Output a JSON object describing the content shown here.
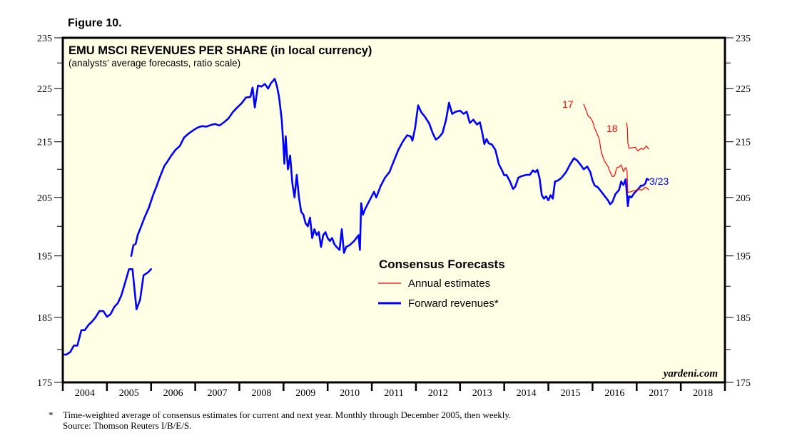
{
  "figure_label": "Figure 10.",
  "footnote": {
    "marker": "*",
    "line1": "Time-weighted average of consensus estimates for current and next year. Monthly through December 2005, then weekly.",
    "line2": "Source: Thomson Reuters I/B/E/S."
  },
  "colors": {
    "plot_bg": "#ffffe6",
    "forward": "#0000ff",
    "annual": "#ff0000",
    "frame": "#000000"
  },
  "chart_data": {
    "type": "line",
    "title": "EMU MSCI REVENUES PER SHARE (in local currency)",
    "subtitle": "(analysts’ average forecasts, ratio scale)",
    "xlabel": "",
    "ylabel": "",
    "y_scale": "log",
    "ylim": [
      175,
      235
    ],
    "xlim": [
      2004.0,
      2019.0
    ],
    "y_ticks": [
      175,
      185,
      195,
      205,
      215,
      225,
      235
    ],
    "y_minor_ticks": [
      180,
      190,
      200,
      210,
      220,
      230
    ],
    "x_tick_labels": [
      "2004",
      "2005",
      "2006",
      "2007",
      "2008",
      "2009",
      "2010",
      "2011",
      "2012",
      "2013",
      "2014",
      "2015",
      "2016",
      "2017",
      "2018"
    ],
    "grid": false,
    "watermark": "yardeni.com",
    "legend": {
      "title": "Consensus Forecasts",
      "placement": "center-bottom",
      "entries": [
        "Annual estimates",
        "Forward revenues*"
      ]
    },
    "annotations": [
      {
        "text": "17",
        "series": "Annual estimates 2017",
        "color": "#ff0000"
      },
      {
        "text": "18",
        "series": "Annual estimates 2018",
        "color": "#ff0000"
      },
      {
        "text": "3/23",
        "series": "Forward revenues*",
        "color": "#0000ff"
      }
    ],
    "series": [
      {
        "name": "Forward revenues*",
        "color": "#0000ff",
        "segments": [
          [
            [
              2004.0,
              179.2
            ],
            [
              2004.08,
              179.2
            ],
            [
              2004.17,
              179.6
            ],
            [
              2004.25,
              180.6
            ],
            [
              2004.33,
              180.6
            ],
            [
              2004.42,
              183.0
            ],
            [
              2004.5,
              183.0
            ],
            [
              2004.58,
              183.8
            ],
            [
              2004.67,
              184.4
            ],
            [
              2004.75,
              185.1
            ],
            [
              2004.83,
              186.0
            ],
            [
              2004.92,
              186.0
            ],
            [
              2005.0,
              185.1
            ],
            [
              2005.08,
              185.5
            ],
            [
              2005.17,
              186.7
            ],
            [
              2005.25,
              187.3
            ],
            [
              2005.33,
              188.6
            ],
            [
              2005.42,
              190.8
            ],
            [
              2005.5,
              192.8
            ],
            [
              2005.58,
              192.8
            ],
            [
              2005.67,
              186.3
            ],
            [
              2005.75,
              187.8
            ],
            [
              2005.83,
              191.8
            ],
            [
              2005.92,
              192.2
            ],
            [
              2006.0,
              192.8
            ]
          ],
          [
            [
              2005.55,
              195.0
            ],
            [
              2005.6,
              196.8
            ],
            [
              2005.65,
              197.0
            ],
            [
              2005.7,
              198.6
            ],
            [
              2005.75,
              199.5
            ],
            [
              2005.85,
              201.5
            ],
            [
              2005.95,
              203.2
            ],
            [
              2006.05,
              205.5
            ],
            [
              2006.12,
              206.9
            ],
            [
              2006.2,
              208.6
            ],
            [
              2006.3,
              210.6
            ],
            [
              2006.38,
              211.5
            ],
            [
              2006.45,
              212.4
            ],
            [
              2006.55,
              213.5
            ],
            [
              2006.65,
              214.2
            ],
            [
              2006.75,
              215.8
            ],
            [
              2006.85,
              216.5
            ],
            [
              2006.95,
              217.1
            ],
            [
              2007.05,
              217.6
            ],
            [
              2007.15,
              217.9
            ],
            [
              2007.25,
              217.8
            ],
            [
              2007.35,
              218.1
            ],
            [
              2007.45,
              218.3
            ],
            [
              2007.55,
              218.0
            ],
            [
              2007.65,
              218.6
            ],
            [
              2007.75,
              219.3
            ],
            [
              2007.85,
              220.5
            ],
            [
              2007.95,
              221.4
            ],
            [
              2008.05,
              222.2
            ],
            [
              2008.15,
              223.3
            ],
            [
              2008.25,
              223.4
            ],
            [
              2008.3,
              225.2
            ],
            [
              2008.35,
              221.4
            ],
            [
              2008.42,
              225.6
            ],
            [
              2008.5,
              225.4
            ],
            [
              2008.58,
              225.9
            ],
            [
              2008.65,
              225.0
            ],
            [
              2008.72,
              226.1
            ],
            [
              2008.8,
              226.9
            ],
            [
              2008.85,
              225.5
            ],
            [
              2008.9,
              223.4
            ],
            [
              2008.96,
              219.0
            ],
            [
              2009.0,
              214.0
            ],
            [
              2009.02,
              211.0
            ],
            [
              2009.05,
              216.0
            ],
            [
              2009.1,
              210.0
            ],
            [
              2009.15,
              212.5
            ],
            [
              2009.2,
              207.5
            ],
            [
              2009.25,
              205.0
            ],
            [
              2009.3,
              209.0
            ],
            [
              2009.35,
              205.0
            ],
            [
              2009.4,
              202.5
            ],
            [
              2009.45,
              202.0
            ],
            [
              2009.5,
              200.5
            ],
            [
              2009.55,
              200.0
            ],
            [
              2009.6,
              201.5
            ],
            [
              2009.65,
              198.0
            ],
            [
              2009.7,
              199.5
            ],
            [
              2009.75,
              198.5
            ],
            [
              2009.8,
              199.0
            ],
            [
              2009.85,
              196.5
            ],
            [
              2009.9,
              198.5
            ],
            [
              2009.95,
              199.0
            ],
            [
              2010.0,
              198.0
            ],
            [
              2010.05,
              197.5
            ],
            [
              2010.1,
              198.0
            ],
            [
              2010.15,
              197.0
            ],
            [
              2010.2,
              196.5
            ],
            [
              2010.27,
              196.0
            ],
            [
              2010.32,
              199.5
            ],
            [
              2010.37,
              195.5
            ],
            [
              2010.42,
              196.5
            ],
            [
              2010.5,
              196.8
            ],
            [
              2010.6,
              197.5
            ],
            [
              2010.7,
              198.5
            ],
            [
              2010.73,
              196.0
            ],
            [
              2010.76,
              204.0
            ],
            [
              2010.8,
              202.0
            ],
            [
              2010.85,
              203.0
            ],
            [
              2010.95,
              204.5
            ],
            [
              2011.05,
              206.0
            ],
            [
              2011.1,
              205.0
            ],
            [
              2011.2,
              207.0
            ],
            [
              2011.3,
              208.5
            ],
            [
              2011.4,
              209.5
            ],
            [
              2011.5,
              211.5
            ],
            [
              2011.6,
              213.5
            ],
            [
              2011.7,
              215.0
            ],
            [
              2011.8,
              216.2
            ],
            [
              2011.88,
              216.0
            ],
            [
              2011.92,
              215.2
            ],
            [
              2011.98,
              217.5
            ],
            [
              2012.05,
              221.8
            ],
            [
              2012.12,
              220.5
            ],
            [
              2012.2,
              219.7
            ],
            [
              2012.3,
              218.4
            ],
            [
              2012.38,
              216.6
            ],
            [
              2012.45,
              215.4
            ],
            [
              2012.52,
              215.8
            ],
            [
              2012.6,
              216.6
            ],
            [
              2012.68,
              219.0
            ],
            [
              2012.75,
              222.3
            ],
            [
              2012.82,
              220.2
            ],
            [
              2012.9,
              220.6
            ],
            [
              2013.0,
              220.8
            ],
            [
              2013.08,
              220.2
            ],
            [
              2013.15,
              220.6
            ],
            [
              2013.22,
              218.5
            ],
            [
              2013.3,
              219.1
            ],
            [
              2013.38,
              218.2
            ],
            [
              2013.45,
              218.6
            ],
            [
              2013.5,
              216.8
            ],
            [
              2013.55,
              214.6
            ],
            [
              2013.6,
              215.5
            ],
            [
              2013.65,
              214.7
            ],
            [
              2013.72,
              214.5
            ],
            [
              2013.8,
              213.5
            ],
            [
              2013.88,
              210.9
            ],
            [
              2013.95,
              209.8
            ],
            [
              2014.0,
              208.9
            ],
            [
              2014.05,
              209.0
            ],
            [
              2014.12,
              208.0
            ],
            [
              2014.2,
              206.5
            ],
            [
              2014.25,
              206.9
            ],
            [
              2014.32,
              208.5
            ],
            [
              2014.4,
              208.8
            ],
            [
              2014.5,
              209.0
            ],
            [
              2014.58,
              209.0
            ],
            [
              2014.65,
              209.8
            ],
            [
              2014.7,
              209.5
            ],
            [
              2014.75,
              209.9
            ],
            [
              2014.8,
              208.4
            ],
            [
              2014.85,
              205.4
            ],
            [
              2014.9,
              204.8
            ],
            [
              2014.95,
              205.2
            ],
            [
              2015.0,
              204.5
            ],
            [
              2015.05,
              205.4
            ],
            [
              2015.1,
              204.8
            ],
            [
              2015.15,
              207.8
            ],
            [
              2015.22,
              208.0
            ],
            [
              2015.3,
              208.5
            ],
            [
              2015.4,
              209.5
            ],
            [
              2015.5,
              211.0
            ],
            [
              2015.58,
              212.0
            ],
            [
              2015.65,
              211.6
            ],
            [
              2015.72,
              210.9
            ],
            [
              2015.8,
              210.0
            ],
            [
              2015.88,
              210.5
            ],
            [
              2015.95,
              209.5
            ],
            [
              2016.0,
              208.0
            ],
            [
              2016.05,
              207.1
            ],
            [
              2016.12,
              206.8
            ],
            [
              2016.2,
              206.0
            ],
            [
              2016.28,
              205.2
            ],
            [
              2016.35,
              204.5
            ],
            [
              2016.4,
              203.8
            ],
            [
              2016.45,
              204.2
            ],
            [
              2016.52,
              205.6
            ],
            [
              2016.6,
              206.3
            ],
            [
              2016.65,
              207.8
            ],
            [
              2016.7,
              207.2
            ],
            [
              2016.75,
              208.2
            ],
            [
              2016.77,
              206.5
            ],
            [
              2016.8,
              203.5
            ],
            [
              2016.83,
              205.2
            ],
            [
              2016.88,
              205.0
            ],
            [
              2016.95,
              205.8
            ],
            [
              2017.0,
              206.2
            ],
            [
              2017.05,
              206.6
            ],
            [
              2017.1,
              207.1
            ],
            [
              2017.15,
              207.1
            ],
            [
              2017.2,
              207.5
            ],
            [
              2017.23,
              208.3
            ],
            [
              2017.27,
              208.1
            ]
          ]
        ]
      },
      {
        "name": "Annual estimates 2017",
        "color": "#ff0000",
        "segments": [
          [
            [
              2015.8,
              222.0
            ],
            [
              2015.85,
              221.0
            ],
            [
              2015.9,
              219.8
            ],
            [
              2015.95,
              219.5
            ],
            [
              2016.0,
              218.8
            ],
            [
              2016.05,
              217.5
            ],
            [
              2016.1,
              216.5
            ],
            [
              2016.15,
              215.6
            ],
            [
              2016.2,
              213.0
            ],
            [
              2016.27,
              211.5
            ],
            [
              2016.35,
              210.5
            ],
            [
              2016.4,
              209.5
            ],
            [
              2016.45,
              208.7
            ],
            [
              2016.5,
              208.8
            ],
            [
              2016.55,
              210.3
            ],
            [
              2016.6,
              210.4
            ],
            [
              2016.65,
              210.8
            ],
            [
              2016.7,
              209.6
            ],
            [
              2016.75,
              210.3
            ],
            [
              2016.78,
              209.8
            ],
            [
              2016.8,
              205.9
            ],
            [
              2016.87,
              206.0
            ],
            [
              2016.95,
              206.2
            ],
            [
              2017.05,
              206.4
            ],
            [
              2017.12,
              206.3
            ],
            [
              2017.2,
              206.8
            ],
            [
              2017.27,
              206.4
            ]
          ]
        ]
      },
      {
        "name": "Annual estimates 2018",
        "color": "#ff0000",
        "segments": [
          [
            [
              2016.77,
              218.5
            ],
            [
              2016.79,
              217.5
            ],
            [
              2016.8,
              214.8
            ],
            [
              2016.83,
              213.8
            ],
            [
              2016.9,
              213.9
            ],
            [
              2016.97,
              214.0
            ],
            [
              2017.03,
              213.3
            ],
            [
              2017.1,
              213.8
            ],
            [
              2017.15,
              213.6
            ],
            [
              2017.22,
              214.2
            ],
            [
              2017.27,
              213.7
            ]
          ]
        ]
      }
    ]
  }
}
